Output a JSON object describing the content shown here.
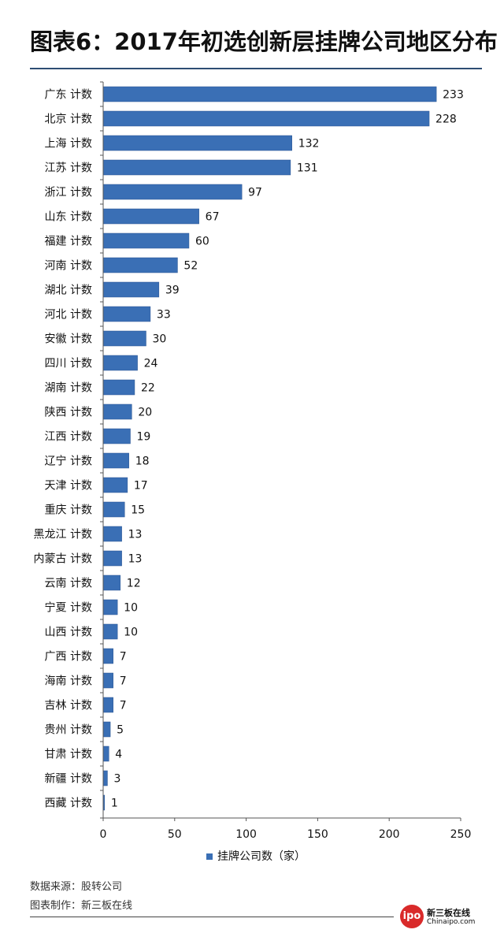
{
  "title": "图表6：2017年初选创新层挂牌公司地区分布",
  "colors": {
    "bar": "#3a6fb5",
    "bar_edge": "#2b5591",
    "axis": "#555555",
    "title_rule": "#2e4d73"
  },
  "chart_data": {
    "type": "bar",
    "orientation": "horizontal",
    "categories": [
      "广东 计数",
      "北京 计数",
      "上海 计数",
      "江苏 计数",
      "浙江 计数",
      "山东 计数",
      "福建 计数",
      "河南 计数",
      "湖北 计数",
      "河北 计数",
      "安徽 计数",
      "四川 计数",
      "湖南 计数",
      "陕西 计数",
      "江西 计数",
      "辽宁 计数",
      "天津 计数",
      "重庆 计数",
      "黑龙江 计数",
      "内蒙古 计数",
      "云南 计数",
      "宁夏 计数",
      "山西 计数",
      "广西 计数",
      "海南 计数",
      "吉林 计数",
      "贵州 计数",
      "甘肃 计数",
      "新疆 计数",
      "西藏 计数"
    ],
    "series": [
      {
        "name": "挂牌公司数（家）",
        "values": [
          233,
          228,
          132,
          131,
          97,
          67,
          60,
          52,
          39,
          33,
          30,
          24,
          22,
          20,
          19,
          18,
          17,
          15,
          13,
          13,
          12,
          10,
          10,
          7,
          7,
          7,
          5,
          4,
          3,
          1
        ]
      }
    ],
    "xlim": [
      0,
      250
    ],
    "xticks": [
      0,
      50,
      100,
      150,
      200,
      250
    ],
    "data_labels": true,
    "grid": false,
    "legend_position": "bottom"
  },
  "footer": {
    "source": "数据来源：股转公司",
    "maker": "图表制作：新三板在线"
  },
  "logo": {
    "badge": "ipo",
    "cn": "新三板在线",
    "en": "Chinaipo.com"
  }
}
